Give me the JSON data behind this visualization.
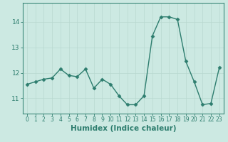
{
  "x": [
    0,
    1,
    2,
    3,
    4,
    5,
    6,
    7,
    8,
    9,
    10,
    11,
    12,
    13,
    14,
    15,
    16,
    17,
    18,
    19,
    20,
    21,
    22,
    23
  ],
  "y": [
    11.55,
    11.65,
    11.75,
    11.8,
    12.15,
    11.9,
    11.85,
    12.15,
    11.4,
    11.75,
    11.55,
    11.1,
    10.75,
    10.75,
    11.1,
    13.45,
    14.2,
    14.2,
    14.1,
    12.45,
    11.65,
    10.75,
    10.8,
    12.2
  ],
  "line_color": "#2d7d6e",
  "marker": "D",
  "marker_size": 2.5,
  "line_width": 1.0,
  "xlabel": "Humidex (Indice chaleur)",
  "xlabel_fontsize": 7.5,
  "ylim": [
    10.4,
    14.75
  ],
  "xlim": [
    -0.5,
    23.5
  ],
  "yticks": [
    11,
    12,
    13,
    14
  ],
  "xticks": [
    0,
    1,
    2,
    3,
    4,
    5,
    6,
    7,
    8,
    9,
    10,
    11,
    12,
    13,
    14,
    15,
    16,
    17,
    18,
    19,
    20,
    21,
    22,
    23
  ],
  "xtick_fontsize": 5.5,
  "ytick_fontsize": 6.5,
  "background_color": "#cce9e2",
  "grid_color": "#b8d8d0",
  "grid_linewidth": 0.5,
  "spine_color": "#3d8a7a",
  "tick_color": "#2d7d6e"
}
